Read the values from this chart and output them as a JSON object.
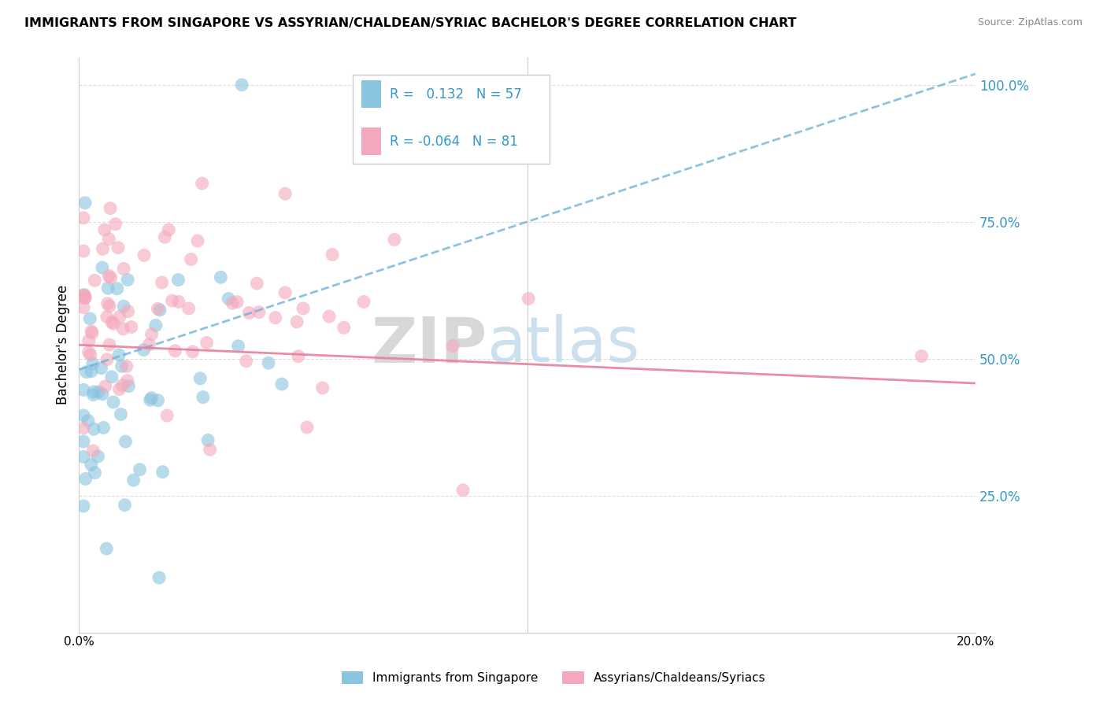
{
  "title": "IMMIGRANTS FROM SINGAPORE VS ASSYRIAN/CHALDEAN/SYRIAC BACHELOR'S DEGREE CORRELATION CHART",
  "source": "Source: ZipAtlas.com",
  "ylabel": "Bachelor's Degree",
  "right_yticks": [
    "100.0%",
    "75.0%",
    "50.0%",
    "25.0%"
  ],
  "right_ytick_vals": [
    1.0,
    0.75,
    0.5,
    0.25
  ],
  "legend_blue_label": "Immigrants from Singapore",
  "legend_pink_label": "Assyrians/Chaldeans/Syriacs",
  "R_blue": 0.132,
  "N_blue": 57,
  "R_pink": -0.064,
  "N_pink": 81,
  "blue_color": "#89c4e0",
  "pink_color": "#f4a8bc",
  "trend_blue_color": "#6aaed6",
  "trend_pink_color": "#e87fa0",
  "watermark_zip": "ZIP",
  "watermark_atlas": "atlas",
  "xmin": 0.0,
  "xmax": 0.2,
  "ymin": 0.0,
  "ymax": 1.05,
  "trend_blue_y0": 0.48,
  "trend_blue_y1": 1.02,
  "trend_pink_y0": 0.525,
  "trend_pink_y1": 0.455
}
